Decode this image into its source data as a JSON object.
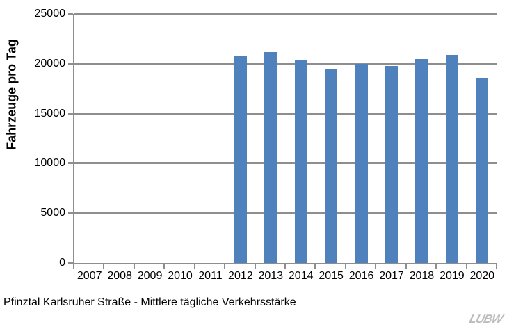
{
  "chart_data": {
    "type": "bar",
    "categories": [
      "2007",
      "2008",
      "2009",
      "2010",
      "2011",
      "2012",
      "2013",
      "2014",
      "2015",
      "2016",
      "2017",
      "2018",
      "2019",
      "2020"
    ],
    "values": [
      null,
      null,
      null,
      null,
      null,
      20800,
      21200,
      20400,
      19500,
      20000,
      19800,
      20500,
      20900,
      18600
    ],
    "ylabel": "Fahrzeuge pro Tag",
    "xlabel": "",
    "ylim": [
      0,
      25000
    ],
    "yticks": [
      0,
      5000,
      10000,
      15000,
      20000,
      25000
    ],
    "grid": true,
    "legend_position": "none",
    "bar_color": "#4F81BD",
    "gridline_color": "#8E8E8E"
  },
  "caption": "Pfinztal Karlsruher Straße - Mittlere tägliche Verkehrsstärke",
  "logo_text": "LUBW"
}
